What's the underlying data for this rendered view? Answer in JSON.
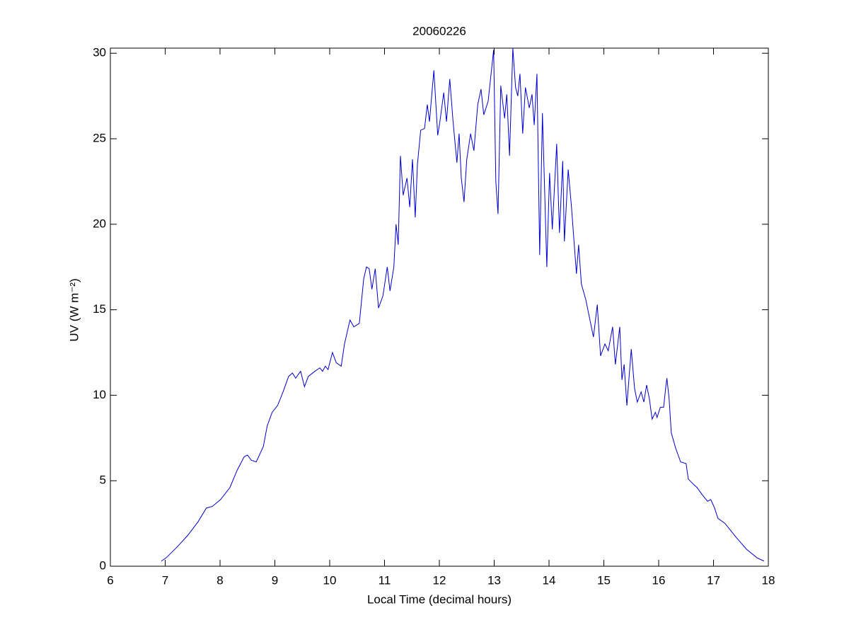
{
  "chart_data": {
    "type": "line",
    "title": "20060226",
    "xlabel": "Local Time (decimal hours)",
    "ylabel": "UV (W m⁻²)",
    "xlim": [
      6,
      18
    ],
    "xticks": [
      6,
      7,
      8,
      9,
      10,
      11,
      12,
      13,
      14,
      15,
      16,
      17,
      18
    ],
    "ylim": [
      0,
      30.3
    ],
    "yticks": [
      0,
      5,
      10,
      15,
      20,
      25,
      30
    ],
    "series": [
      {
        "color": "#0000cc",
        "x": [
          6.93,
          7.02,
          7.21,
          7.41,
          7.6,
          7.75,
          7.86,
          8.01,
          8.18,
          8.31,
          8.44,
          8.5,
          8.57,
          8.66,
          8.79,
          8.86,
          8.95,
          9.05,
          9.15,
          9.25,
          9.32,
          9.38,
          9.47,
          9.54,
          9.61,
          9.73,
          9.82,
          9.87,
          9.92,
          9.97,
          10.05,
          10.12,
          10.21,
          10.27,
          10.37,
          10.44,
          10.54,
          10.62,
          10.67,
          10.72,
          10.77,
          10.83,
          10.89,
          10.97,
          11.05,
          11.1,
          11.17,
          11.21,
          11.25,
          11.29,
          11.34,
          11.41,
          11.46,
          11.51,
          11.56,
          11.6,
          11.66,
          11.73,
          11.78,
          11.82,
          11.9,
          11.97,
          12.01,
          12.08,
          12.13,
          12.19,
          12.25,
          12.32,
          12.36,
          12.4,
          12.45,
          12.5,
          12.57,
          12.63,
          12.7,
          12.76,
          12.81,
          12.89,
          12.94,
          12.99,
          13.03,
          13.07,
          13.12,
          13.19,
          13.23,
          13.28,
          13.34,
          13.39,
          13.43,
          13.47,
          13.52,
          13.57,
          13.64,
          13.69,
          13.73,
          13.78,
          13.83,
          13.88,
          13.96,
          14.01,
          14.06,
          14.14,
          14.19,
          14.25,
          14.28,
          14.35,
          14.41,
          14.5,
          14.54,
          14.59,
          14.67,
          14.74,
          14.81,
          14.88,
          14.94,
          15.02,
          15.08,
          15.16,
          15.21,
          15.29,
          15.33,
          15.37,
          15.42,
          15.5,
          15.56,
          15.61,
          15.68,
          15.73,
          15.78,
          15.83,
          15.88,
          15.94,
          15.97,
          16.03,
          16.09,
          16.13,
          16.15,
          16.19,
          16.23,
          16.31,
          16.4,
          16.5,
          16.54,
          16.63,
          16.7,
          16.79,
          16.89,
          16.95,
          17.02,
          17.08,
          17.21,
          17.41,
          17.6,
          17.79,
          17.92
        ],
        "values": [
          0.3,
          0.5,
          1.1,
          1.8,
          2.6,
          3.4,
          3.5,
          3.9,
          4.6,
          5.6,
          6.4,
          6.5,
          6.2,
          6.1,
          7.0,
          8.2,
          9.0,
          9.4,
          10.2,
          11.1,
          11.3,
          11.0,
          11.4,
          10.5,
          11.1,
          11.4,
          11.6,
          11.4,
          11.7,
          11.5,
          12.5,
          11.9,
          11.7,
          13.0,
          14.4,
          14.0,
          14.2,
          16.8,
          17.5,
          17.4,
          16.2,
          17.4,
          15.1,
          15.8,
          17.5,
          16.1,
          17.5,
          20.0,
          18.8,
          24.0,
          21.7,
          22.7,
          21.0,
          23.8,
          20.4,
          23.5,
          25.5,
          25.6,
          27.0,
          26.0,
          29.0,
          25.2,
          26.0,
          27.7,
          26.0,
          28.5,
          26.0,
          23.6,
          25.3,
          22.7,
          21.3,
          23.8,
          25.3,
          24.3,
          27.0,
          27.9,
          26.4,
          27.2,
          28.7,
          30.2,
          22.5,
          20.6,
          28.1,
          26.2,
          27.6,
          24.0,
          30.3,
          28.0,
          27.5,
          28.8,
          25.3,
          28.0,
          26.8,
          27.6,
          25.8,
          28.8,
          18.2,
          26.5,
          17.5,
          23.0,
          19.7,
          24.7,
          19.5,
          23.7,
          19.0,
          23.2,
          21.0,
          17.1,
          18.8,
          16.5,
          15.6,
          14.5,
          13.4,
          15.3,
          12.3,
          13.0,
          12.6,
          14.0,
          11.8,
          14.0,
          10.9,
          11.8,
          9.4,
          12.7,
          10.4,
          9.6,
          10.2,
          9.6,
          10.6,
          9.8,
          8.6,
          9.0,
          8.7,
          9.3,
          9.3,
          10.5,
          11.0,
          9.8,
          7.8,
          6.9,
          6.1,
          6.0,
          5.1,
          4.8,
          4.6,
          4.2,
          3.8,
          3.9,
          3.4,
          2.8,
          2.5,
          1.7,
          1.0,
          0.5,
          0.3
        ]
      }
    ]
  }
}
